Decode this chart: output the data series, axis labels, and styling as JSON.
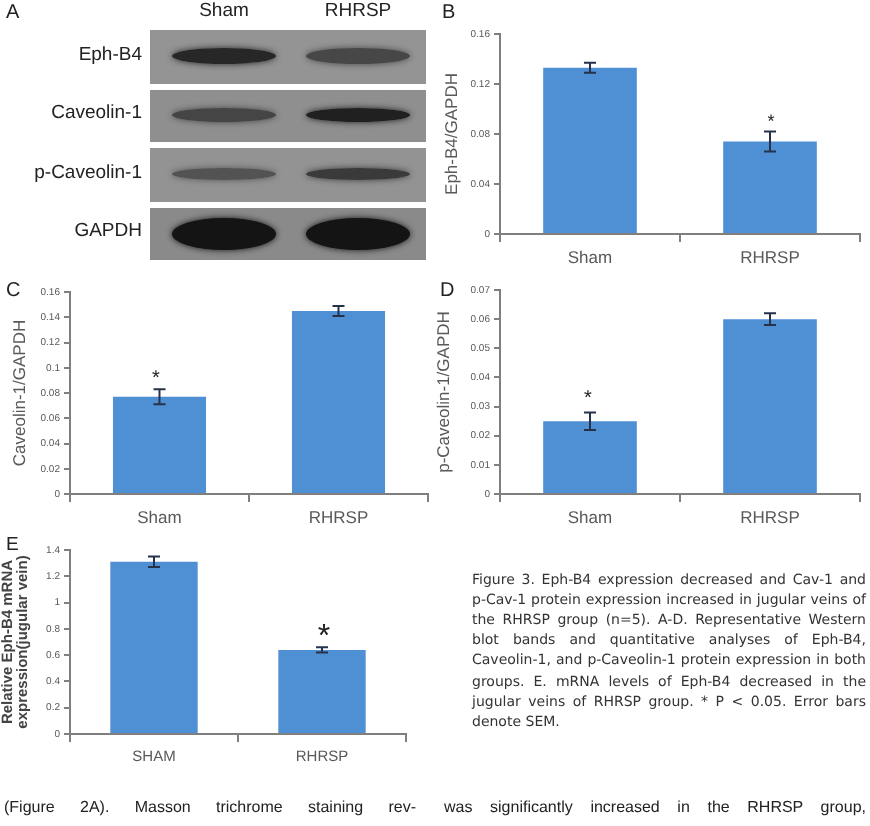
{
  "chart_data": [
    {
      "type": "other",
      "title": "A",
      "categories": [
        "Sham",
        "RHRSP"
      ],
      "y_categories": [
        "Eph-B4",
        "Caveolin-1",
        "p-Caveolin-1",
        "GAPDH"
      ]
    },
    {
      "type": "bar",
      "title": "B",
      "ylabel": "Eph-B4/GAPDH",
      "categories": [
        "Sham",
        "RHRSP"
      ],
      "values": [
        0.133,
        0.074
      ],
      "errors": [
        0.004,
        0.008
      ],
      "color": "#4f8fd4",
      "ylim": [
        0,
        0.16
      ],
      "yticks": [
        0,
        0.04,
        0.08,
        0.12,
        0.16
      ],
      "annotations": [
        "*"
      ]
    },
    {
      "type": "bar",
      "title": "C",
      "ylabel": "Caveolin-1/GAPDH",
      "categories": [
        "Sham",
        "RHRSP"
      ],
      "values": [
        0.077,
        0.145
      ],
      "errors": [
        0.006,
        0.004
      ],
      "color": "#4f8fd4",
      "ylim": [
        0,
        0.16
      ],
      "yticks": [
        0,
        0.02,
        0.04,
        0.06,
        0.08,
        0.1,
        0.12,
        0.14,
        0.16
      ],
      "annotations": [
        "*"
      ]
    },
    {
      "type": "bar",
      "title": "D",
      "ylabel": "p-Caveolin-1/GAPDH",
      "categories": [
        "Sham",
        "RHRSP"
      ],
      "values": [
        0.025,
        0.06
      ],
      "errors": [
        0.003,
        0.002
      ],
      "color": "#4f8fd4",
      "ylim": [
        0,
        0.07
      ],
      "yticks": [
        0,
        0.01,
        0.02,
        0.03,
        0.04,
        0.05,
        0.06,
        0.07
      ],
      "annotations": [
        "*"
      ]
    },
    {
      "type": "bar",
      "title": "E",
      "ylabel": "Relative Eph-B4 mRNA expression(jugular vein)",
      "categories": [
        "SHAM",
        "RHRSP"
      ],
      "values": [
        1.31,
        0.64
      ],
      "errors": [
        0.04,
        0.02
      ],
      "color": "#4f8fd4",
      "ylim": [
        0,
        1.4
      ],
      "yticks": [
        0,
        0.2,
        0.4,
        0.6,
        0.8,
        1,
        1.2,
        1.4
      ],
      "annotations": [
        "*"
      ]
    },
    {
      "type": "other",
      "annotations": [
        "Figure 3. Eph-B4 expression decreased and Cav-1 and p-Cav-1 protein expression increased in jugular veins of the RHRSP group (n=5). A-D. Representative Western blot bands and quantitative analyses of Eph-B4, Caveolin-1, and p-Caveolin-1 protein expression in both groups. E. mRNA levels of Eph-B4 decreased in the jugular veins of RHRSP group. * P < 0.05. Error bars denote SEM.",
        "(Figure 2A). Masson trichrome staining rev-",
        "was significantly increased in the RHRSP group,"
      ]
    }
  ]
}
